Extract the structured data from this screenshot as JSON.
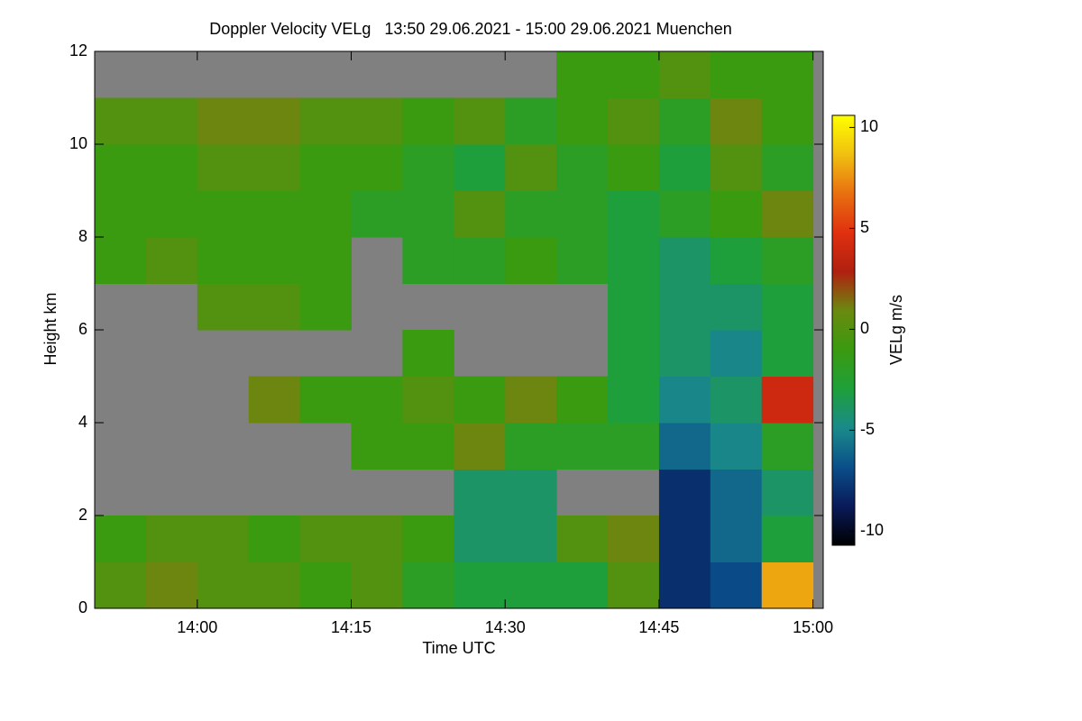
{
  "chart_data": {
    "type": "heatmap",
    "title": "Doppler Velocity VELg   13:50 29.06.2021 - 15:00 29.06.2021 Muenchen",
    "x_label": "Time UTC",
    "y_label": "Height km",
    "colorbar_label": "VELg m/s",
    "xlim": [
      830,
      901
    ],
    "ylim": [
      0,
      12
    ],
    "xticks": [
      {
        "value": 840,
        "label": "14:00"
      },
      {
        "value": 855,
        "label": "14:15"
      },
      {
        "value": 870,
        "label": "14:30"
      },
      {
        "value": 885,
        "label": "14:45"
      },
      {
        "value": 900,
        "label": "15:00"
      }
    ],
    "yticks": [
      0,
      2,
      4,
      6,
      8,
      10,
      12
    ],
    "clim": [
      -10.7,
      10.6
    ],
    "cticks": [
      10,
      5,
      0,
      -5,
      -10
    ],
    "colormap": [
      "#000000",
      "#0a1a5a",
      "#0a4f8a",
      "#1a8a8a",
      "#1fa03a",
      "#3a9a10",
      "#6a8a10",
      "#b02010",
      "#e03010",
      "#e87010",
      "#f0c010",
      "#ffff00"
    ],
    "nodata_color": "#808080",
    "x": [
      832.5,
      837.5,
      842.5,
      847.5,
      852.5,
      857.5,
      862.5,
      867.5,
      872.5,
      877.5,
      882.5,
      887.5,
      892.5,
      897.5
    ],
    "y": [
      0.5,
      1.5,
      2.5,
      3.5,
      4.5,
      5.5,
      6.5,
      7.5,
      8.5,
      9.5,
      10.5,
      11.5
    ],
    "z": [
      [
        0,
        1,
        0,
        0,
        -1,
        0,
        -2,
        -3,
        -3,
        -3,
        0,
        -8,
        -7,
        8
      ],
      [
        -1,
        0,
        0,
        -1,
        0,
        0,
        -1,
        -4,
        -4,
        0,
        1,
        -8,
        -6,
        -3
      ],
      [
        null,
        null,
        null,
        null,
        null,
        null,
        null,
        -4,
        -4,
        null,
        null,
        -8,
        -6,
        -4
      ],
      [
        null,
        null,
        null,
        null,
        null,
        -1,
        -1,
        1,
        -2,
        -2,
        -2,
        -6,
        -5,
        -2
      ],
      [
        null,
        null,
        null,
        1,
        -1,
        -1,
        0,
        -1,
        1,
        -1,
        -3,
        -5,
        -4,
        4
      ],
      [
        null,
        null,
        null,
        null,
        null,
        null,
        -1,
        null,
        null,
        null,
        -3,
        -4,
        -5,
        -3
      ],
      [
        null,
        null,
        0,
        0,
        -1,
        null,
        null,
        null,
        null,
        null,
        -3,
        -4,
        -4,
        -3
      ],
      [
        -1,
        0,
        -1,
        -1,
        -1,
        null,
        -2,
        -2,
        -1,
        -2,
        -3,
        -4,
        -3,
        -2
      ],
      [
        -1,
        -1,
        -1,
        -1,
        -1,
        -2,
        -2,
        0,
        -2,
        -2,
        -3,
        -2,
        -1,
        1
      ],
      [
        -1,
        -1,
        0,
        0,
        -1,
        -1,
        -2,
        -3,
        0,
        -2,
        -1,
        -3,
        0,
        -2
      ],
      [
        0,
        0,
        1,
        1,
        0,
        0,
        -1,
        0,
        -2,
        -1,
        0,
        -2,
        1,
        -1
      ],
      [
        null,
        null,
        null,
        null,
        null,
        null,
        null,
        null,
        null,
        -1,
        -1,
        0,
        -1,
        -1
      ]
    ]
  }
}
